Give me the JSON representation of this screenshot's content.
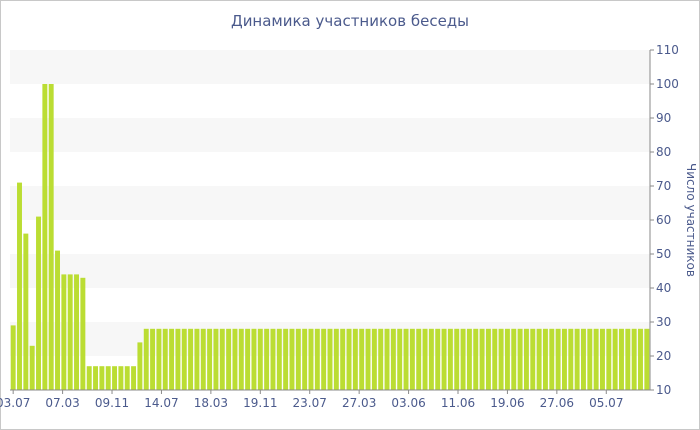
{
  "chart_data": {
    "type": "bar",
    "title": "Динамика участников беседы",
    "xlabel": "",
    "ylabel": "Число участников",
    "ylim": [
      10,
      110
    ],
    "yticks": [
      10,
      20,
      30,
      40,
      50,
      60,
      70,
      80,
      90,
      100,
      110
    ],
    "xtick_labels": [
      "03.07",
      "07.03",
      "09.11",
      "14.07",
      "18.03",
      "19.11",
      "23.07",
      "27.03",
      "03.06",
      "11.06",
      "19.06",
      "27.06",
      "05.07"
    ],
    "grid": "alternating horizontal bands",
    "colors": {
      "bar": "#bbdd33",
      "band": "#f7f7f7",
      "text": "#4b5a8c"
    },
    "values": [
      29,
      71,
      56,
      23,
      61,
      100,
      100,
      51,
      44,
      44,
      44,
      43,
      17,
      17,
      17,
      17,
      17,
      17,
      17,
      17,
      24,
      28,
      28,
      28,
      28,
      28,
      28,
      28,
      28,
      28,
      28,
      28,
      28,
      28,
      28,
      28,
      28,
      28,
      28,
      28,
      28,
      28,
      28,
      28,
      28,
      28,
      28,
      28,
      28,
      28,
      28,
      28,
      28,
      28,
      28,
      28,
      28,
      28,
      28,
      28,
      28,
      28,
      28,
      28,
      28,
      28,
      28,
      28,
      28,
      28,
      28,
      28,
      28,
      28,
      28,
      28,
      28,
      28,
      28,
      28,
      28,
      28,
      28,
      28,
      28,
      28,
      28,
      28,
      28,
      28,
      28,
      28,
      28,
      28,
      28,
      28,
      28,
      28,
      28,
      28,
      28
    ]
  }
}
